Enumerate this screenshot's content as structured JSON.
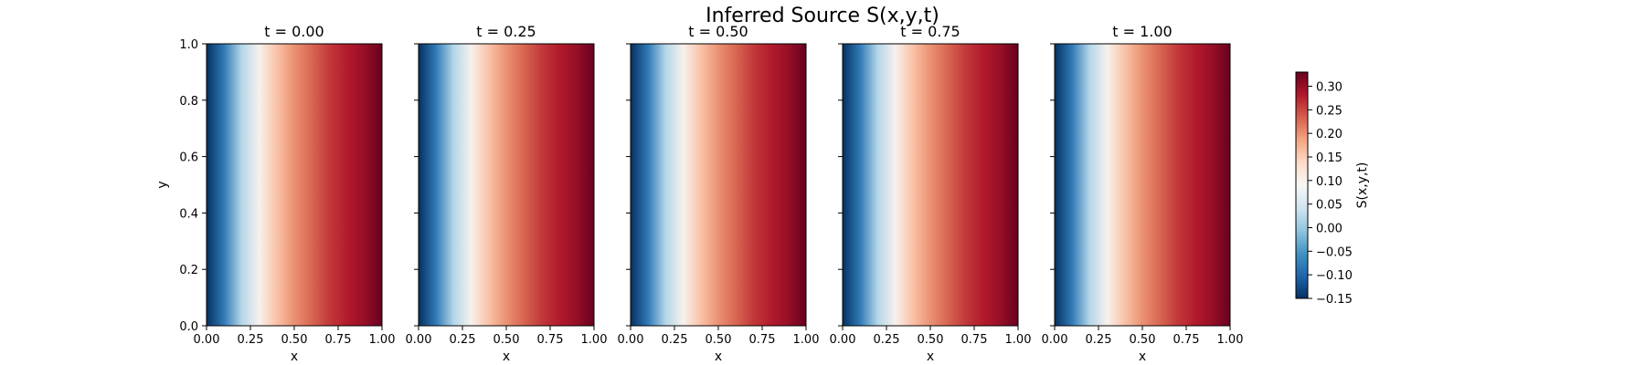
{
  "chart_data": {
    "type": "heatmap",
    "title": "Inferred Source S(x,y,t)",
    "colormap": "RdBu_r",
    "colormap_stops": [
      "#053061",
      "#2166ac",
      "#4393c3",
      "#92c5de",
      "#d1e5f0",
      "#f7f7f7",
      "#fddbc7",
      "#f4a582",
      "#d6604d",
      "#b2182b",
      "#67001f"
    ],
    "value_range": [
      -0.15,
      0.33
    ],
    "panels": [
      {
        "title": "t = 0.00",
        "t": 0.0,
        "profile": {
          "x": [
            0,
            0.1,
            0.2,
            0.3,
            0.4,
            0.5,
            0.6,
            0.7,
            0.8,
            0.9,
            1.0
          ],
          "values": [
            -0.15,
            -0.08,
            0.02,
            0.1,
            0.16,
            0.2,
            0.23,
            0.26,
            0.28,
            0.3,
            0.33
          ]
        }
      },
      {
        "title": "t = 0.25",
        "t": 0.25,
        "profile": {
          "x": [
            0,
            0.1,
            0.2,
            0.3,
            0.4,
            0.5,
            0.6,
            0.7,
            0.8,
            0.9,
            1.0
          ],
          "values": [
            -0.15,
            -0.08,
            0.02,
            0.1,
            0.16,
            0.2,
            0.23,
            0.26,
            0.28,
            0.3,
            0.33
          ]
        }
      },
      {
        "title": "t = 0.50",
        "t": 0.5,
        "profile": {
          "x": [
            0,
            0.1,
            0.2,
            0.3,
            0.4,
            0.5,
            0.6,
            0.7,
            0.8,
            0.9,
            1.0
          ],
          "values": [
            -0.15,
            -0.08,
            0.02,
            0.1,
            0.16,
            0.2,
            0.23,
            0.26,
            0.28,
            0.3,
            0.33
          ]
        }
      },
      {
        "title": "t = 0.75",
        "t": 0.75,
        "profile": {
          "x": [
            0,
            0.1,
            0.2,
            0.3,
            0.4,
            0.5,
            0.6,
            0.7,
            0.8,
            0.9,
            1.0
          ],
          "values": [
            -0.15,
            -0.08,
            0.02,
            0.1,
            0.16,
            0.2,
            0.23,
            0.26,
            0.28,
            0.3,
            0.33
          ]
        }
      },
      {
        "title": "t = 1.00",
        "t": 1.0,
        "profile": {
          "x": [
            0,
            0.1,
            0.2,
            0.3,
            0.4,
            0.5,
            0.6,
            0.7,
            0.8,
            0.9,
            1.0
          ],
          "values": [
            -0.15,
            -0.08,
            0.02,
            0.1,
            0.16,
            0.2,
            0.23,
            0.26,
            0.28,
            0.3,
            0.33
          ]
        }
      }
    ],
    "xlabel": "x",
    "ylabel": "y",
    "xlim": [
      0,
      1
    ],
    "ylim": [
      0,
      1
    ],
    "x_ticks": [
      "0.00",
      "0.25",
      "0.50",
      "0.75",
      "1.00"
    ],
    "y_ticks": [
      "0.0",
      "0.2",
      "0.4",
      "0.6",
      "0.8",
      "1.0"
    ],
    "colorbar": {
      "label": "S(x,y,t)",
      "ticks": [
        "0.30",
        "0.25",
        "0.20",
        "0.15",
        "0.10",
        "0.05",
        "0.00",
        "−0.05",
        "−0.10",
        "−0.15"
      ]
    },
    "grid": false
  }
}
